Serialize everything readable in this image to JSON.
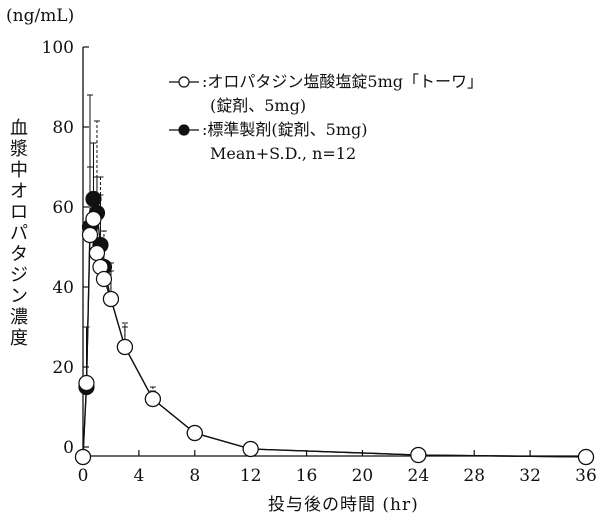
{
  "chart_data": {
    "type": "line",
    "unit_label": "(ng/mL)",
    "ylabel": "血漿中オロパタジン濃度",
    "xlabel": "投与後の時間 (hr)",
    "xlim": [
      0,
      36
    ],
    "ylim": [
      0,
      100
    ],
    "xticks": [
      0,
      4,
      8,
      12,
      16,
      20,
      24,
      28,
      32,
      36
    ],
    "yticks": [
      0,
      20,
      40,
      60,
      80,
      100
    ],
    "grid": false,
    "legend_position": "top-right",
    "legend_note": "Mean+S.D., n=12",
    "series": [
      {
        "name": ":オロパタジン塩酸塩錠5mg「トーワ」",
        "name_line2": "(錠剤、5mg)",
        "marker": "open-circle",
        "x": [
          0,
          0.25,
          0.5,
          0.75,
          1,
          1.25,
          1.5,
          2,
          3,
          5,
          8,
          12,
          24,
          36
        ],
        "y": [
          -2.5,
          16,
          53,
          57,
          48.5,
          45,
          42,
          37,
          25,
          12,
          3.5,
          -0.5,
          -2,
          -2.5
        ],
        "sd": [
          0,
          14,
          35,
          19,
          19,
          18,
          9,
          7,
          5,
          2,
          1,
          0.5,
          0,
          0
        ]
      },
      {
        "name": ":標準製剤(錠剤、5mg)",
        "marker": "filled-circle",
        "x": [
          0,
          0.25,
          0.5,
          0.75,
          1,
          1.25,
          1.5,
          2,
          3,
          5,
          8,
          12,
          24,
          36
        ],
        "y": [
          -2.5,
          15,
          55,
          62,
          58.5,
          50.5,
          45,
          37,
          25,
          12,
          3.5,
          -0.5,
          -2,
          -2.5
        ],
        "sd": [
          0,
          15,
          15,
          14,
          23,
          17,
          9,
          9,
          6,
          3,
          1,
          0.5,
          0,
          0
        ]
      }
    ]
  }
}
